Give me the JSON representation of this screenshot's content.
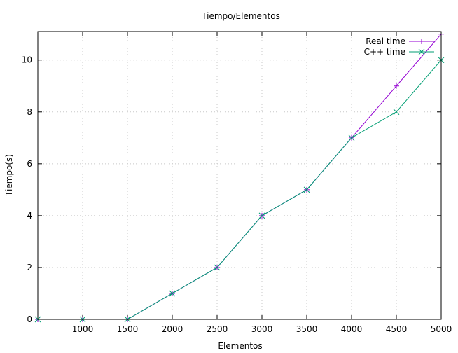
{
  "chart_data": {
    "type": "line",
    "title": "Tiempo/Elementos",
    "xlabel": "Elementos",
    "ylabel": "Tiempo(s)",
    "xlim": [
      500,
      5000
    ],
    "ylim": [
      0,
      11.1
    ],
    "xticks": [
      1000,
      1500,
      2000,
      2500,
      3000,
      3500,
      4000,
      4500,
      5000
    ],
    "yticks": [
      0,
      2,
      4,
      6,
      8,
      10
    ],
    "grid": true,
    "legend_position": "top-right",
    "x": [
      500,
      1000,
      1500,
      2000,
      2500,
      3000,
      3500,
      4000,
      4500,
      5000
    ],
    "series": [
      {
        "name": "Real time",
        "color": "#9400d3",
        "marker": "plus",
        "values": [
          0,
          0,
          0,
          1,
          2,
          4,
          5,
          7,
          9,
          11
        ]
      },
      {
        "name": "C++ time",
        "color": "#009e73",
        "marker": "cross",
        "values": [
          0,
          0,
          0,
          1,
          2,
          4,
          5,
          7,
          8,
          10
        ]
      }
    ]
  }
}
